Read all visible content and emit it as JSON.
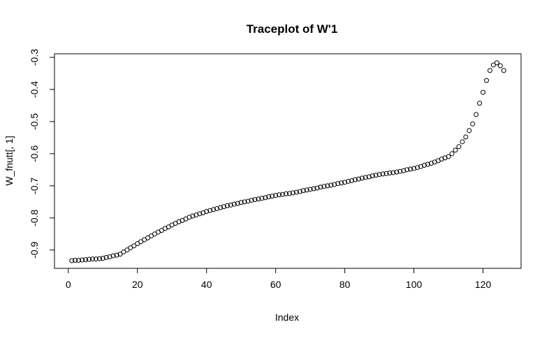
{
  "chart_data": {
    "type": "scatter",
    "title": "Traceplot of W'1",
    "x_label": "Index",
    "y_label": "W_fnutt[, 1]",
    "x": [
      1,
      2,
      3,
      4,
      5,
      6,
      7,
      8,
      9,
      10,
      11,
      12,
      13,
      14,
      15,
      16,
      17,
      18,
      19,
      20,
      21,
      22,
      23,
      24,
      25,
      26,
      27,
      28,
      29,
      30,
      31,
      32,
      33,
      34,
      35,
      36,
      37,
      38,
      39,
      40,
      41,
      42,
      43,
      44,
      45,
      46,
      47,
      48,
      49,
      50,
      51,
      52,
      53,
      54,
      55,
      56,
      57,
      58,
      59,
      60,
      61,
      62,
      63,
      64,
      65,
      66,
      67,
      68,
      69,
      70,
      71,
      72,
      73,
      74,
      75,
      76,
      77,
      78,
      79,
      80,
      81,
      82,
      83,
      84,
      85,
      86,
      87,
      88,
      89,
      90,
      91,
      92,
      93,
      94,
      95,
      96,
      97,
      98,
      99,
      100,
      101,
      102,
      103,
      104,
      105,
      106,
      107,
      108,
      109,
      110,
      111,
      112,
      113,
      114,
      115,
      116,
      117,
      118,
      119,
      120,
      121,
      122,
      123,
      124,
      125,
      126
    ],
    "values": [
      -0.933,
      -0.932,
      -0.932,
      -0.931,
      -0.93,
      -0.929,
      -0.928,
      -0.928,
      -0.927,
      -0.926,
      -0.923,
      -0.921,
      -0.918,
      -0.916,
      -0.913,
      -0.906,
      -0.9,
      -0.893,
      -0.887,
      -0.88,
      -0.874,
      -0.868,
      -0.862,
      -0.856,
      -0.85,
      -0.844,
      -0.839,
      -0.833,
      -0.828,
      -0.822,
      -0.817,
      -0.812,
      -0.808,
      -0.803,
      -0.798,
      -0.794,
      -0.791,
      -0.787,
      -0.784,
      -0.78,
      -0.777,
      -0.774,
      -0.771,
      -0.768,
      -0.765,
      -0.762,
      -0.76,
      -0.757,
      -0.755,
      -0.752,
      -0.75,
      -0.748,
      -0.745,
      -0.743,
      -0.741,
      -0.739,
      -0.737,
      -0.734,
      -0.732,
      -0.73,
      -0.728,
      -0.727,
      -0.725,
      -0.724,
      -0.722,
      -0.72,
      -0.718,
      -0.715,
      -0.713,
      -0.711,
      -0.709,
      -0.707,
      -0.704,
      -0.702,
      -0.7,
      -0.698,
      -0.696,
      -0.693,
      -0.691,
      -0.689,
      -0.686,
      -0.684,
      -0.681,
      -0.679,
      -0.676,
      -0.674,
      -0.672,
      -0.669,
      -0.667,
      -0.665,
      -0.663,
      -0.662,
      -0.66,
      -0.659,
      -0.657,
      -0.655,
      -0.653,
      -0.65,
      -0.648,
      -0.646,
      -0.643,
      -0.64,
      -0.636,
      -0.633,
      -0.63,
      -0.626,
      -0.622,
      -0.617,
      -0.613,
      -0.609,
      -0.6,
      -0.589,
      -0.578,
      -0.563,
      -0.548,
      -0.528,
      -0.507,
      -0.478,
      -0.443,
      -0.409,
      -0.372,
      -0.341,
      -0.324,
      -0.317,
      -0.326,
      -0.341
    ],
    "color": "#000000",
    "xlim": [
      -4,
      131
    ],
    "xticks": [
      0,
      20,
      40,
      60,
      80,
      100,
      120
    ],
    "ylim": [
      -0.957,
      -0.289
    ],
    "yticks": [
      -0.9,
      -0.8,
      -0.7,
      -0.6,
      -0.5,
      -0.4,
      -0.3
    ]
  }
}
